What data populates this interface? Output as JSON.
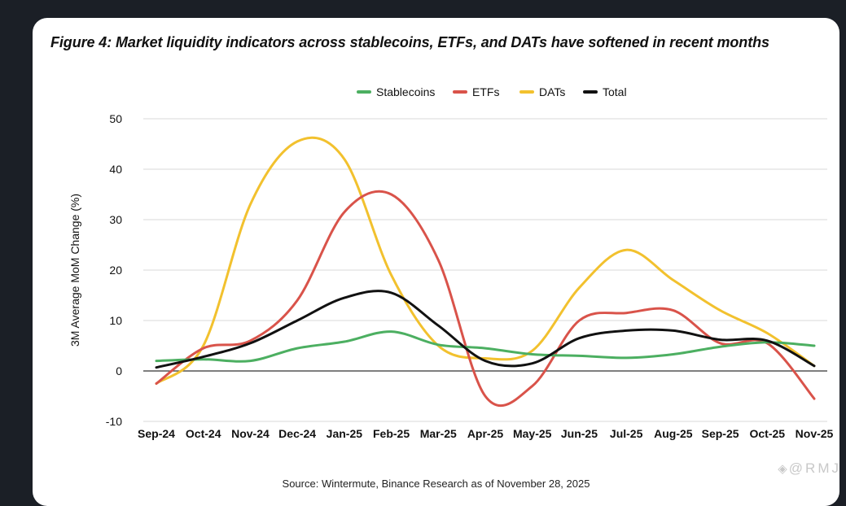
{
  "figure": {
    "title": "Figure 4: Market liquidity indicators across stablecoins, ETFs, and DATs have softened in recent months",
    "source": "Source: Wintermute, Binance Research as of November 28, 2025",
    "watermark": "@RMJ"
  },
  "chart_data": {
    "type": "line",
    "title": "",
    "xlabel": "",
    "ylabel": "3M Average MoM Change (%)",
    "ylim": [
      -10,
      50
    ],
    "yticks": [
      -10,
      0,
      10,
      20,
      30,
      40,
      50
    ],
    "grid": true,
    "legend": "top-center",
    "categories": [
      "Sep-24",
      "Oct-24",
      "Nov-24",
      "Dec-24",
      "Jan-25",
      "Feb-25",
      "Mar-25",
      "Apr-25",
      "May-25",
      "Jun-25",
      "Jul-25",
      "Aug-25",
      "Sep-25",
      "Oct-25",
      "Nov-25"
    ],
    "series": [
      {
        "name": "Stablecoins",
        "color": "#4caf61",
        "values": [
          2,
          2.3,
          2,
          4.5,
          5.8,
          7.8,
          5.2,
          4.5,
          3.3,
          3,
          2.6,
          3.3,
          4.8,
          5.7,
          5
        ]
      },
      {
        "name": "ETFs",
        "color": "#d9534a",
        "values": [
          -2.5,
          4.5,
          6,
          14,
          31.5,
          35,
          22,
          -5,
          -3,
          10,
          11.5,
          12,
          5.5,
          5.5,
          -5.5
        ]
      },
      {
        "name": "DATs",
        "color": "#f2c12e",
        "values": [
          -2.5,
          5,
          33,
          45.5,
          42,
          19,
          5,
          2.5,
          4,
          16.5,
          24,
          18,
          12,
          7.5,
          1
        ]
      },
      {
        "name": "Total",
        "color": "#111111",
        "values": [
          0.7,
          2.8,
          5.5,
          10,
          14.5,
          15.5,
          9,
          2,
          1.5,
          6.5,
          8,
          8,
          6.2,
          6,
          1
        ]
      }
    ]
  }
}
